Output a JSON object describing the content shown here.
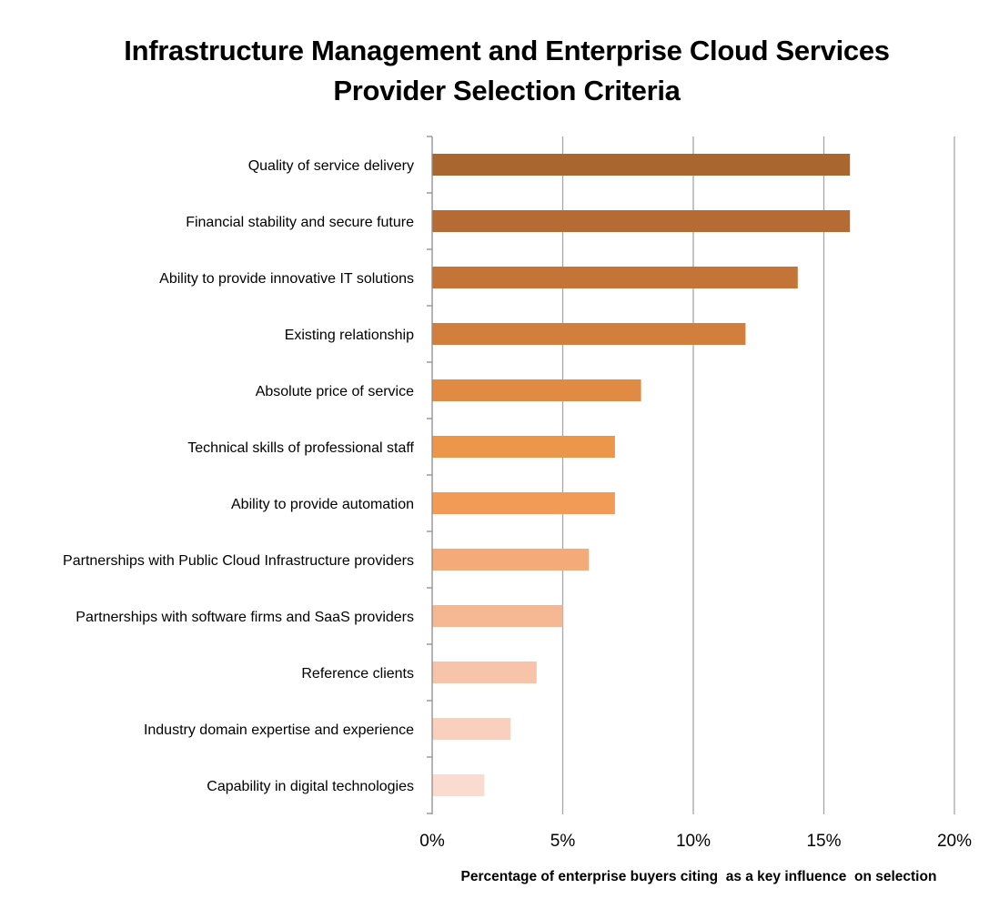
{
  "chart_data": {
    "type": "bar",
    "orientation": "horizontal",
    "title": "Infrastructure Management and Enterprise Cloud Services Provider Selection Criteria",
    "title_lines": [
      "Infrastructure Management and Enterprise Cloud Services",
      "Provider Selection Criteria"
    ],
    "categories": [
      "Quality of service delivery",
      "Financial stability and secure future",
      "Ability to provide innovative IT solutions",
      "Existing relationship",
      "Absolute price of service",
      "Technical skills of professional staff",
      "Ability to provide automation",
      "Partnerships with Public Cloud Infrastructure providers",
      "Partnerships with software firms and SaaS providers",
      "Reference clients",
      "Industry domain expertise and experience",
      "Capability in digital technologies"
    ],
    "values": [
      16,
      16,
      14,
      12,
      8,
      7,
      7,
      6,
      5,
      4,
      3,
      2
    ],
    "bar_colors": [
      "#a9662f",
      "#b56b33",
      "#c47437",
      "#d27e3c",
      "#e08a43",
      "#ec964c",
      "#f29b57",
      "#f5ab79",
      "#f6b793",
      "#f7c4aa",
      "#f8d0bd",
      "#f9dccf"
    ],
    "xlabel": "Percentage of enterprise buyers citing  as a key influence  on selection",
    "ylabel": "",
    "xlim": [
      0,
      20
    ],
    "xticks": [
      0,
      5,
      10,
      15,
      20
    ],
    "xtick_labels": [
      "0%",
      "5%",
      "10%",
      "15%",
      "20%"
    ],
    "grid": true,
    "legend": "none"
  }
}
